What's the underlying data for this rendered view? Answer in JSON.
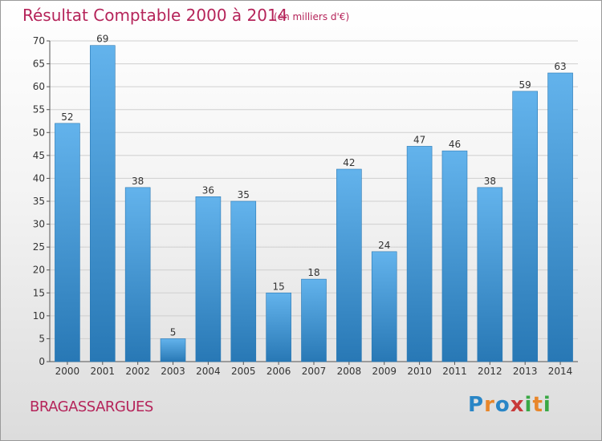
{
  "title": "Résultat Comptable 2000 à 2014",
  "subtitle": "(en milliers d'€)",
  "town": "BRAGASSARGUES",
  "logo": {
    "text": "Proxiti",
    "colors": [
      "#2a86c6",
      "#e8862a",
      "#2a86c6",
      "#c83a3a",
      "#3aa845",
      "#e8862a",
      "#3aa845"
    ]
  },
  "colors": {
    "bar_top": "#63b3ec",
    "bar_bottom": "#2878b5",
    "title": "#b5245a"
  },
  "chart_data": {
    "type": "bar",
    "categories": [
      "2000",
      "2001",
      "2002",
      "2003",
      "2004",
      "2005",
      "2006",
      "2007",
      "2008",
      "2009",
      "2010",
      "2011",
      "2012",
      "2013",
      "2014"
    ],
    "values": [
      52,
      69,
      38,
      5,
      36,
      35,
      15,
      18,
      42,
      24,
      47,
      46,
      38,
      59,
      63
    ],
    "ylim": [
      0,
      70
    ],
    "yticks": [
      0,
      5,
      10,
      15,
      20,
      25,
      30,
      35,
      40,
      45,
      50,
      55,
      60,
      65,
      70
    ],
    "grid": true,
    "data_labels": true
  }
}
